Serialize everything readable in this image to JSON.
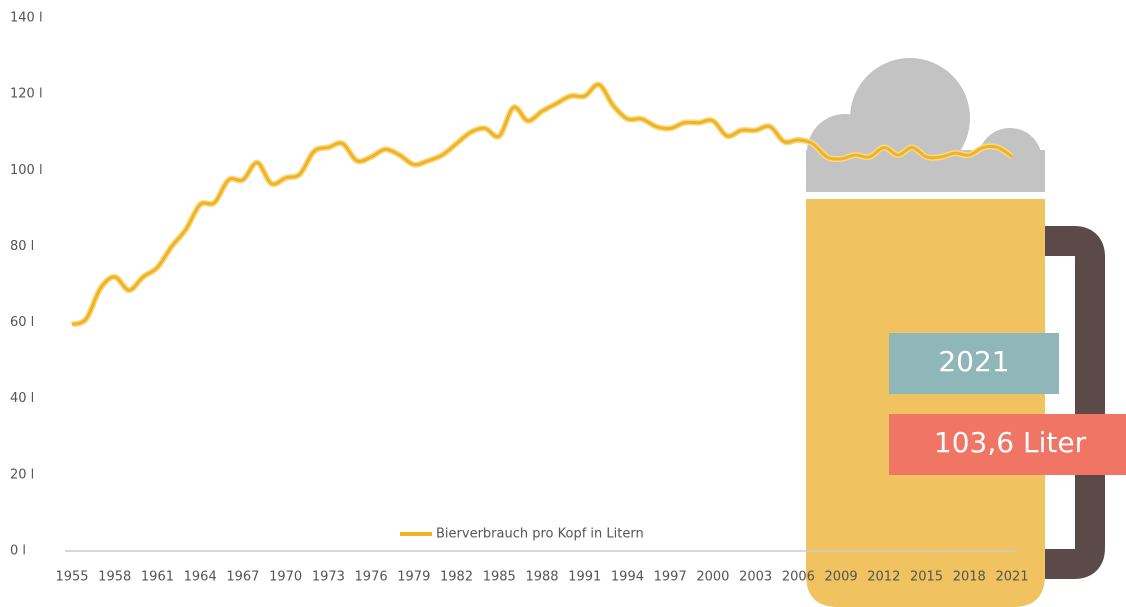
{
  "chart_data": {
    "type": "line",
    "x": [
      1955,
      1956,
      1957,
      1958,
      1959,
      1960,
      1961,
      1962,
      1963,
      1964,
      1965,
      1966,
      1967,
      1968,
      1969,
      1970,
      1971,
      1972,
      1973,
      1974,
      1975,
      1976,
      1977,
      1978,
      1979,
      1980,
      1981,
      1982,
      1983,
      1984,
      1985,
      1986,
      1987,
      1988,
      1989,
      1990,
      1991,
      1992,
      1993,
      1994,
      1995,
      1996,
      1997,
      1998,
      1999,
      2000,
      2001,
      2002,
      2003,
      2004,
      2005,
      2006,
      2007,
      2008,
      2009,
      2010,
      2011,
      2012,
      2013,
      2014,
      2015,
      2016,
      2017,
      2018,
      2019,
      2020,
      2021
    ],
    "series": [
      {
        "name": "Bierverbrauch pro Kopf in Litern",
        "color": "#f0b323",
        "values": [
          59.5,
          61,
          69,
          72,
          68.5,
          72,
          74.5,
          80,
          84.5,
          91,
          91.5,
          97.5,
          97.5,
          102,
          96.5,
          98,
          99,
          105,
          106,
          107,
          102.5,
          103.5,
          105.5,
          104,
          101.5,
          102.5,
          104,
          107,
          110,
          111,
          109,
          116.5,
          113,
          115.5,
          117.5,
          119.5,
          119.5,
          122.5,
          117,
          113.5,
          113.5,
          111.5,
          111,
          112.5,
          112.5,
          113,
          109,
          110.5,
          110.5,
          111.5,
          107.5,
          108,
          107,
          103.5,
          103,
          104,
          103.5,
          106,
          104,
          106,
          103.5,
          103.5,
          104.5,
          104,
          106,
          106,
          103.6
        ]
      }
    ],
    "xlim": [
      1955,
      2021
    ],
    "xticks": [
      1955,
      1958,
      1961,
      1964,
      1967,
      1970,
      1973,
      1976,
      1979,
      1982,
      1985,
      1988,
      1991,
      1994,
      1997,
      2000,
      2003,
      2006,
      2009,
      2012,
      2015,
      2018,
      2021
    ],
    "ylim": [
      0,
      140
    ],
    "yticks": [
      {
        "value": 0,
        "label": "0 l"
      },
      {
        "value": 20,
        "label": "20 l"
      },
      {
        "value": 40,
        "label": "40 l"
      },
      {
        "value": 60,
        "label": "60 l"
      },
      {
        "value": 80,
        "label": "80 l"
      },
      {
        "value": 100,
        "label": "100 l"
      },
      {
        "value": 120,
        "label": "120 l"
      },
      {
        "value": 140,
        "label": "140 l"
      }
    ],
    "legend": "bottom",
    "annotations": {
      "year": "2021",
      "amount": "103,6 Liter"
    }
  }
}
